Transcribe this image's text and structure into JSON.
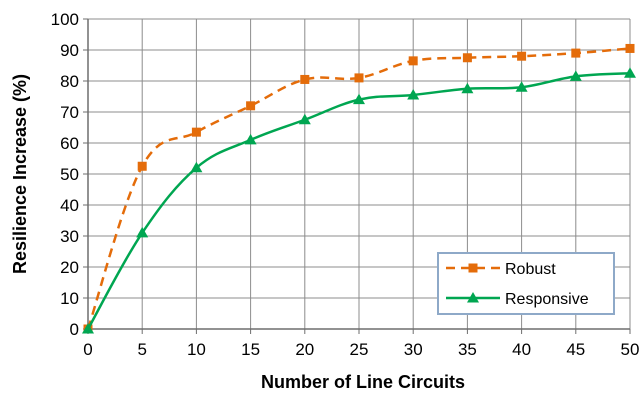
{
  "chart_data": {
    "type": "line",
    "xlabel": "Number of Line Circuits",
    "ylabel": "Resilience Increase (%)",
    "xlim": [
      0,
      50
    ],
    "ylim": [
      0,
      100
    ],
    "x_ticks": [
      "0",
      "5",
      "10",
      "15",
      "20",
      "25",
      "30",
      "35",
      "40",
      "45",
      "50"
    ],
    "y_ticks": [
      "0",
      "10",
      "20",
      "30",
      "40",
      "50",
      "60",
      "70",
      "80",
      "90",
      "100"
    ],
    "grid": true,
    "legend_position": "bottom-right",
    "x": [
      0,
      5,
      10,
      15,
      20,
      25,
      30,
      35,
      40,
      45,
      50
    ],
    "series": [
      {
        "name": "Robust",
        "values": [
          0,
          52.5,
          63.5,
          72,
          80.5,
          81,
          86.5,
          87.5,
          88,
          89,
          90.5
        ],
        "color": "#E46C0A",
        "line_style": "dashed",
        "marker": "square"
      },
      {
        "name": "Responsive",
        "values": [
          0,
          31,
          52,
          61,
          67.5,
          74,
          75.5,
          77.5,
          78,
          81.5,
          82.5
        ],
        "color": "#00A651",
        "line_style": "solid",
        "marker": "triangle"
      }
    ]
  }
}
